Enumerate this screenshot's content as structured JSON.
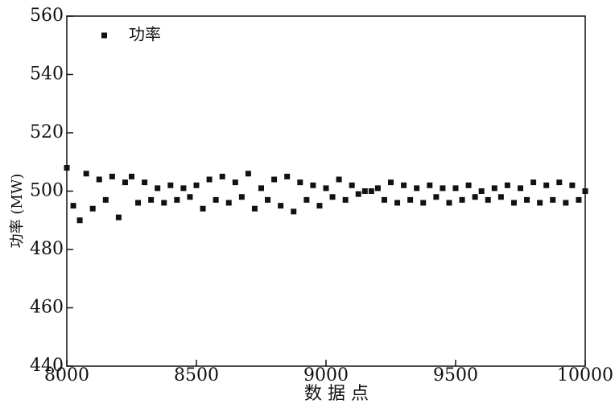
{
  "chart_data": {
    "type": "scatter",
    "x_label": "数 据 点",
    "y_label": "功率 (MW)",
    "x": [
      8000,
      8025,
      8050,
      8075,
      8100,
      8125,
      8150,
      8175,
      8200,
      8225,
      8250,
      8275,
      8300,
      8325,
      8350,
      8375,
      8400,
      8425,
      8450,
      8475,
      8500,
      8525,
      8550,
      8575,
      8600,
      8625,
      8650,
      8675,
      8700,
      8725,
      8750,
      8775,
      8800,
      8825,
      8850,
      8875,
      8900,
      8925,
      8950,
      8975,
      9000,
      9025,
      9050,
      9075,
      9100,
      9125,
      9150,
      9175,
      9200,
      9225,
      9250,
      9275,
      9300,
      9325,
      9350,
      9375,
      9400,
      9425,
      9450,
      9475,
      9500,
      9525,
      9550,
      9575,
      9600,
      9625,
      9650,
      9675,
      9700,
      9725,
      9750,
      9775,
      9800,
      9825,
      9850,
      9875,
      9900,
      9925,
      9950,
      9975,
      10000
    ],
    "series": [
      {
        "name": "功率",
        "color": "#111111",
        "values": [
          508,
          495,
          490,
          506,
          494,
          504,
          497,
          505,
          491,
          503,
          505,
          496,
          503,
          497,
          501,
          496,
          502,
          497,
          501,
          498,
          502,
          494,
          504,
          497,
          505,
          496,
          503,
          498,
          506,
          494,
          501,
          497,
          504,
          495,
          505,
          493,
          503,
          497,
          502,
          495,
          501,
          498,
          504,
          497,
          502,
          499,
          500,
          500,
          501,
          497,
          503,
          496,
          502,
          497,
          501,
          496,
          502,
          498,
          501,
          496,
          501,
          497,
          502,
          498,
          500,
          497,
          501,
          498,
          502,
          496,
          501,
          497,
          503,
          496,
          502,
          497,
          503,
          496,
          502,
          497,
          500
        ]
      }
    ],
    "xlim": [
      8000,
      10000
    ],
    "xticks": [
      8000,
      8500,
      9000,
      9500,
      10000
    ],
    "ylim": [
      440,
      560
    ],
    "yticks": [
      440,
      460,
      480,
      500,
      520,
      540,
      560
    ],
    "legend": "upper left",
    "grid": false
  }
}
